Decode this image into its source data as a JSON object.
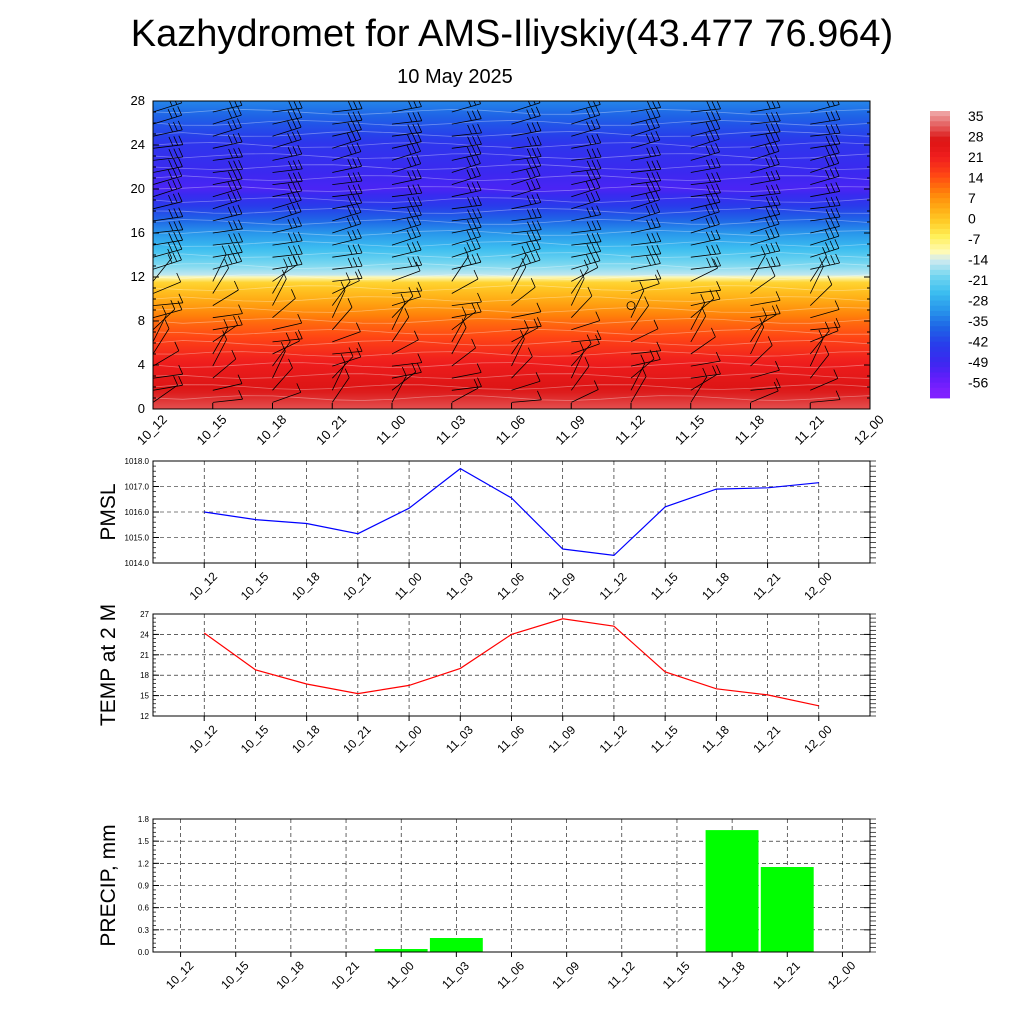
{
  "header": {
    "title": "Kazhydromet for AMS-Iliyskiy(43.477 76.964)",
    "date": "10 May 2025"
  },
  "time_labels": [
    "10_12",
    "10_15",
    "10_18",
    "10_21",
    "11_00",
    "11_03",
    "11_06",
    "11_09",
    "11_12",
    "11_15",
    "11_18",
    "11_21",
    "12_00"
  ],
  "chart_data": [
    {
      "type": "heatmap",
      "title": "",
      "xlabel": "",
      "ylabel": "",
      "x": [
        "10_12",
        "10_15",
        "10_18",
        "10_21",
        "11_00",
        "11_03",
        "11_06",
        "11_09",
        "11_12",
        "11_15",
        "11_18",
        "11_21",
        "12_00"
      ],
      "y_ticks": [
        0,
        4,
        8,
        12,
        16,
        20,
        24,
        28
      ],
      "ylim": [
        0,
        28
      ],
      "colorbar": {
        "labels": [
          "35",
          "28",
          "21",
          "14",
          "7",
          "0",
          "-7",
          "-14",
          "-21",
          "-28",
          "-35",
          "-42",
          "-49",
          "-56"
        ],
        "range": [
          -60,
          38
        ]
      },
      "profile": {
        "height": [
          0,
          4,
          8,
          11.5,
          12.2,
          16,
          20,
          24,
          28
        ],
        "temperature": [
          30,
          21,
          10,
          -3,
          -16,
          -32,
          -52,
          -46,
          -34
        ]
      },
      "wind_barbs": true
    },
    {
      "type": "line",
      "ylabel": "PMSL",
      "x": [
        "10_12",
        "10_15",
        "10_18",
        "10_21",
        "11_00",
        "11_03",
        "11_06",
        "11_09",
        "11_12",
        "11_15",
        "11_18",
        "11_21",
        "12_00"
      ],
      "values": [
        1016.0,
        1015.7,
        1015.55,
        1015.15,
        1016.15,
        1017.7,
        1016.55,
        1014.55,
        1014.3,
        1016.2,
        1016.9,
        1016.95,
        1017.15
      ],
      "ylim": [
        1014.0,
        1018.0
      ],
      "yticks": [
        "1014.0",
        "1015.0",
        "1016.0",
        "1017.0",
        "1018.0"
      ],
      "color": "#0000ff",
      "grid": true
    },
    {
      "type": "line",
      "ylabel": "TEMP at 2 M",
      "x": [
        "10_12",
        "10_15",
        "10_18",
        "10_21",
        "11_00",
        "11_03",
        "11_06",
        "11_09",
        "11_12",
        "11_15",
        "11_18",
        "11_21",
        "12_00"
      ],
      "values": [
        24.2,
        18.8,
        16.7,
        15.3,
        16.5,
        19.0,
        24.0,
        26.3,
        25.2,
        18.5,
        16.0,
        15.1,
        13.5
      ],
      "ylim": [
        12,
        27
      ],
      "yticks": [
        "12",
        "15",
        "18",
        "21",
        "24",
        "27"
      ],
      "color": "#ff0000",
      "grid": true
    },
    {
      "type": "bar",
      "ylabel": "PRECIP, mm",
      "categories": [
        "10_12",
        "10_15",
        "10_18",
        "10_21",
        "11_00",
        "11_03",
        "11_06",
        "11_09",
        "11_12",
        "11_15",
        "11_18",
        "11_21",
        "12_00"
      ],
      "values": [
        0,
        0,
        0,
        0,
        0.04,
        0.19,
        0,
        0,
        0,
        0,
        1.65,
        1.15,
        0
      ],
      "ylim": [
        0,
        1.8
      ],
      "yticks": [
        "0.0",
        "0.3",
        "0.6",
        "0.9",
        "1.2",
        "1.5",
        "1.8"
      ],
      "color": "#00ff00",
      "grid": true
    }
  ]
}
